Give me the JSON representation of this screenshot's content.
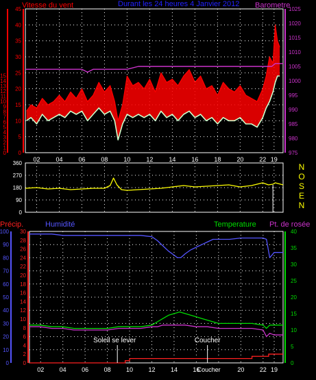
{
  "colors": {
    "background": "#000000",
    "frame": "#ffffff",
    "grid": "#ffffff",
    "wind_speed": "#ff0000",
    "wind_gust_hint": "#ffffff",
    "wind_avg": "#ccffcc",
    "barometer": "#cc33cc",
    "direction": "#ffff00",
    "precip": "#ff2020",
    "humidity": "#5555ff",
    "temperature": "#00dd00",
    "dewpoint": "#cc33cc",
    "title": "#2222ff",
    "annotation": "#ffffff"
  },
  "chart_data": [
    {
      "type": "line",
      "id": "wind-barometer",
      "title": "Durant les 24 heures 4 Janvier 2012",
      "left_axis_label": "Vitesse du vent",
      "left_scale_mph": [
        "0",
        "1",
        "2",
        "3",
        "4",
        "5",
        "6",
        "7",
        "8",
        "9",
        "10",
        "11",
        "12",
        "13",
        "14",
        "15"
      ],
      "left_scale_kmh": [
        "0",
        "5",
        "10",
        "15",
        "20",
        "25",
        "30",
        "35",
        "40",
        "45"
      ],
      "right_axis_label": "Barometre",
      "right_scale": [
        "975",
        "980",
        "985",
        "990",
        "995",
        "1000",
        "1005",
        "1010",
        "1015",
        "1020",
        "1025"
      ],
      "x_ticks": [
        "02",
        "04",
        "06",
        "08",
        "10",
        "12",
        "14",
        "16",
        "18",
        "20",
        "22",
        "19"
      ],
      "x_tick_hours": [
        2,
        4,
        6,
        8,
        10,
        12,
        14,
        16,
        18,
        20,
        22,
        23
      ],
      "y_range_kmh": [
        0,
        45
      ],
      "baro_range": [
        975,
        1025
      ],
      "x_range_hours": [
        1,
        23.8
      ],
      "series": [
        {
          "key": "wind_max",
          "x": [
            1.1,
            1.5,
            2,
            2.5,
            3,
            3.5,
            4,
            4.5,
            5,
            5.5,
            6,
            6.5,
            7,
            7.5,
            8,
            8.5,
            8.9,
            9.2,
            9.6,
            10,
            10.5,
            11,
            11.5,
            12,
            12.5,
            13,
            13.5,
            14,
            14.5,
            15,
            15.5,
            16,
            16.5,
            17,
            17.5,
            18,
            18.5,
            19,
            19.5,
            20,
            20.5,
            21,
            21.5,
            22,
            22.3,
            22.6,
            22.9,
            23.1,
            23.3,
            23.5
          ],
          "y": [
            13,
            15,
            14,
            17,
            15,
            16,
            18,
            16,
            19,
            17,
            20,
            16,
            18,
            22,
            19,
            21,
            16,
            10,
            15,
            24,
            21,
            22,
            20,
            23,
            19,
            25,
            22,
            23,
            21,
            24,
            26,
            22,
            24,
            20,
            21,
            18,
            22,
            20,
            19,
            21,
            18,
            17,
            16,
            20,
            24,
            30,
            28,
            40,
            35,
            33
          ]
        },
        {
          "key": "wind_avg",
          "x": [
            1.1,
            1.5,
            2,
            2.5,
            3,
            3.5,
            4,
            4.5,
            5,
            5.5,
            6,
            6.5,
            7,
            7.5,
            8,
            8.5,
            8.9,
            9.2,
            9.6,
            10,
            10.5,
            11,
            11.5,
            12,
            12.5,
            13,
            13.5,
            14,
            14.5,
            15,
            15.5,
            16,
            16.5,
            17,
            17.5,
            18,
            18.5,
            19,
            19.5,
            20,
            20.5,
            21,
            21.5,
            22,
            22.3,
            22.6,
            22.9,
            23.1,
            23.3,
            23.5
          ],
          "y": [
            10,
            11,
            9,
            12,
            10,
            11,
            12,
            11,
            13,
            12,
            13,
            10,
            12,
            14,
            12,
            13,
            10,
            4,
            9,
            12,
            11,
            12,
            11,
            12,
            10,
            13,
            11,
            12,
            10,
            12,
            13,
            11,
            12,
            10,
            11,
            9,
            11,
            10,
            10,
            11,
            9,
            9,
            8,
            11,
            14,
            16,
            19,
            22,
            24,
            24
          ]
        },
        {
          "key": "barometer",
          "x": [
            1,
            2,
            3,
            4,
            5,
            6,
            6.5,
            7,
            8,
            9,
            10,
            11,
            12,
            13,
            14,
            15,
            16,
            17,
            18,
            19,
            20,
            21,
            22,
            22.4,
            22.8,
            23.1,
            23.4,
            23.8
          ],
          "y": [
            1004,
            1004,
            1004,
            1004,
            1004,
            1004,
            1003,
            1004,
            1004,
            1004,
            1004,
            1005,
            1005,
            1005,
            1005,
            1005,
            1005,
            1005,
            1005,
            1005,
            1005,
            1005,
            1005,
            1005,
            1005,
            1006,
            1006,
            1006
          ]
        }
      ]
    },
    {
      "type": "line",
      "id": "wind-direction",
      "y_ticks": [
        "360",
        "270",
        "180",
        "90",
        "0"
      ],
      "y_range": [
        0,
        360
      ],
      "compass_labels": [
        "N",
        "O",
        "S",
        "E",
        "N"
      ],
      "x_range_hours": [
        1,
        23.8
      ],
      "series": [
        {
          "key": "direction",
          "x": [
            1,
            2,
            3,
            4,
            5,
            6,
            7,
            8,
            8.5,
            8.8,
            9.1,
            9.5,
            10,
            11,
            12,
            13,
            14,
            15,
            16,
            17,
            18,
            19,
            20,
            21,
            22,
            22.5,
            22.9,
            23.1,
            23.8
          ],
          "y": [
            175,
            180,
            170,
            175,
            165,
            170,
            175,
            175,
            195,
            250,
            200,
            165,
            160,
            165,
            170,
            175,
            185,
            195,
            185,
            190,
            195,
            200,
            185,
            195,
            215,
            200,
            205,
            215,
            200
          ]
        }
      ]
    },
    {
      "type": "line",
      "id": "climate",
      "labels": {
        "precip": "Précip.",
        "humidity": "Humidité",
        "temperature": "Temperature",
        "dewpoint": "Pt. de rosée"
      },
      "humidity_scale": [
        "0",
        "10",
        "20",
        "30",
        "40",
        "50",
        "60",
        "70",
        "80",
        "90",
        "100"
      ],
      "precip_scale": [
        "0",
        "2",
        "4",
        "6",
        "8",
        "10",
        "12",
        "14",
        "16",
        "18",
        "20",
        "22",
        "24",
        "26",
        "28",
        "30"
      ],
      "temp_scale": [
        "0",
        "5",
        "10",
        "15",
        "20",
        "25",
        "30",
        "35",
        "40"
      ],
      "x_ticks": [
        "02",
        "04",
        "06",
        "08",
        "10",
        "12",
        "14",
        "16",
        "18",
        "20",
        "22",
        "19"
      ],
      "x_tick_hours": [
        2,
        4,
        6,
        8,
        10,
        12,
        14,
        16,
        18,
        20,
        22,
        23
      ],
      "y_range_temp": [
        0,
        40
      ],
      "x_range_hours": [
        1,
        23.8
      ],
      "annotations": [
        {
          "text": "Soleil se lever",
          "hour": 8.9
        },
        {
          "text": "Coucher",
          "hour": 17
        },
        {
          "text": "Coucher",
          "hour": 17,
          "position": "axis"
        }
      ],
      "series": [
        {
          "key": "humidity",
          "x": [
            1,
            2,
            3,
            4,
            5,
            6,
            7,
            8,
            9,
            10,
            11,
            12,
            12.5,
            13,
            13.5,
            14,
            14.3,
            14.6,
            15,
            15.5,
            16,
            16.5,
            17,
            17.5,
            18,
            19,
            20,
            21,
            22,
            22.3,
            22.6,
            23,
            23.3,
            23.8
          ],
          "y": [
            98,
            98,
            98,
            97,
            97,
            97,
            97,
            97,
            97,
            97,
            97,
            96,
            93,
            89,
            85,
            82,
            80,
            80,
            83,
            86,
            88,
            90,
            92,
            94,
            94,
            94,
            95,
            95,
            95,
            94,
            80,
            84,
            84,
            84
          ]
        },
        {
          "key": "temperature",
          "x": [
            1,
            2,
            3,
            4,
            5,
            6,
            7,
            8,
            9,
            10,
            11,
            12,
            12.5,
            13,
            13.5,
            14,
            14.5,
            15,
            15.5,
            16,
            16.5,
            17,
            17.5,
            18,
            19,
            20,
            21,
            22,
            22.3,
            22.6,
            23,
            23.5,
            23.8
          ],
          "y": [
            11.5,
            11.5,
            11,
            11,
            10.5,
            10.5,
            10.5,
            10.5,
            11,
            11,
            11,
            11.5,
            12.5,
            13.5,
            14.5,
            15,
            15.5,
            15,
            14.5,
            14,
            13.5,
            13,
            12.5,
            12,
            12,
            12,
            12,
            11.5,
            10.5,
            11.5,
            11.5,
            11.5,
            11.5
          ]
        },
        {
          "key": "dewpoint",
          "x": [
            1,
            2,
            3,
            4,
            5,
            6,
            7,
            8,
            9,
            10,
            11,
            12,
            12.5,
            13,
            14,
            15,
            16,
            17,
            18,
            19,
            20,
            21,
            22,
            22.3,
            22.6,
            23,
            23.5,
            23.8
          ],
          "y": [
            11,
            11,
            10.5,
            10.5,
            10,
            10,
            10,
            10,
            10.5,
            10.5,
            10.5,
            11,
            11,
            11.5,
            11.5,
            11.5,
            11,
            11,
            10.5,
            10.5,
            10.5,
            10.5,
            10,
            8,
            9,
            8.5,
            8.5,
            8.5
          ]
        },
        {
          "key": "precip",
          "x": [
            1,
            8.9,
            9.2,
            9.6,
            10,
            12,
            14,
            16,
            18,
            19,
            20,
            21,
            22,
            22.5,
            23,
            23.8
          ],
          "y": [
            0,
            0,
            0,
            0.5,
            1,
            1,
            1,
            1,
            1,
            1,
            1,
            1.5,
            1.5,
            2,
            2,
            2
          ]
        }
      ]
    }
  ]
}
